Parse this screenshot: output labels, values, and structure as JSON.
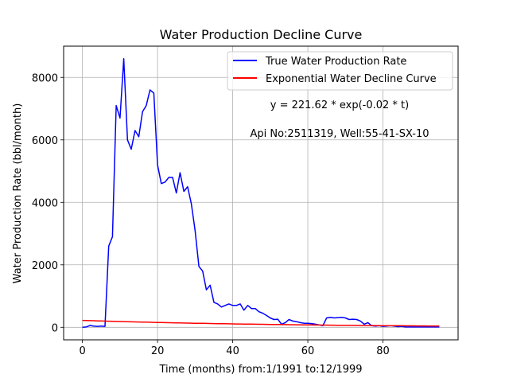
{
  "chart_data": {
    "type": "line",
    "title": "Water Production Decline Curve",
    "xlabel": "Time (months) from:1/1991 to:12/1999",
    "ylabel": "Water Production Rate (bbl/month)",
    "xlim": [
      -5,
      100
    ],
    "ylim": [
      -400,
      9000
    ],
    "xticks": [
      0,
      20,
      40,
      60,
      80
    ],
    "yticks": [
      0,
      2000,
      4000,
      6000,
      8000
    ],
    "grid": true,
    "legend_position": "top-right",
    "annotations": [
      "y = 221.62 * exp(-0.02 * t)",
      "Api No:2511319, Well:55-41-SX-10"
    ],
    "series": [
      {
        "name": "True Water Production Rate",
        "color": "#0000ff",
        "x": [
          0,
          1,
          2,
          3,
          4,
          5,
          6,
          7,
          8,
          9,
          10,
          11,
          12,
          13,
          14,
          15,
          16,
          17,
          18,
          19,
          20,
          21,
          22,
          23,
          24,
          25,
          26,
          27,
          28,
          29,
          30,
          31,
          32,
          33,
          34,
          35,
          36,
          37,
          38,
          39,
          40,
          41,
          42,
          43,
          44,
          45,
          46,
          47,
          48,
          49,
          50,
          51,
          52,
          53,
          54,
          55,
          56,
          57,
          58,
          59,
          60,
          61,
          62,
          63,
          64,
          65,
          66,
          67,
          68,
          69,
          70,
          71,
          72,
          73,
          74,
          75,
          76,
          77,
          78,
          79,
          80,
          81,
          82,
          83,
          84,
          85,
          86,
          87,
          88,
          89,
          90,
          91,
          92,
          93,
          94,
          95
        ],
        "y": [
          0,
          10,
          60,
          40,
          30,
          40,
          30,
          2600,
          2900,
          7100,
          6700,
          8600,
          6000,
          5700,
          6300,
          6100,
          6900,
          7100,
          7600,
          7500,
          5200,
          4600,
          4650,
          4800,
          4800,
          4300,
          4950,
          4350,
          4500,
          3950,
          3100,
          1950,
          1800,
          1200,
          1350,
          800,
          750,
          650,
          700,
          750,
          700,
          700,
          750,
          550,
          700,
          600,
          600,
          500,
          450,
          380,
          300,
          250,
          260,
          100,
          150,
          250,
          200,
          180,
          150,
          130,
          130,
          120,
          100,
          80,
          50,
          300,
          320,
          300,
          310,
          320,
          300,
          250,
          260,
          250,
          200,
          100,
          150,
          50,
          40,
          50,
          30,
          40,
          50,
          40,
          20,
          30,
          10,
          10,
          10,
          10,
          10,
          10,
          10,
          10,
          10,
          10
        ]
      },
      {
        "name": "Exponential Water Decline Curve",
        "color": "#ff0000",
        "type": "exponential",
        "a": 221.62,
        "b": -0.0175,
        "x_range": [
          0,
          95
        ]
      }
    ]
  }
}
